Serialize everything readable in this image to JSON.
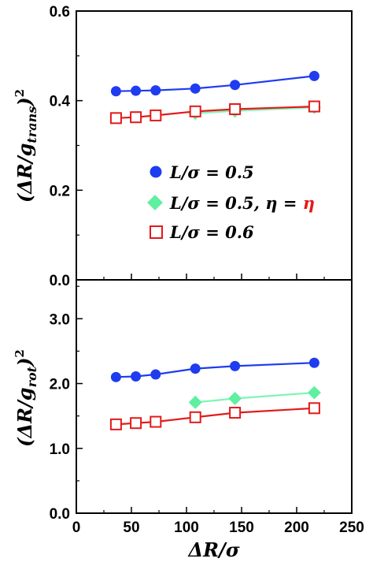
{
  "chart_data": [
    {
      "type": "line",
      "panel": "top",
      "ylabel": "(ΔR/g_trans)²",
      "xlim": [
        0,
        250
      ],
      "ylim": [
        0.0,
        0.6
      ],
      "yticks": [
        "0.0",
        "0.2",
        "0.4",
        "0.6"
      ],
      "legend": {
        "placement": "center-right"
      },
      "series": [
        {
          "name": "L/σ = 0.5",
          "marker": "circle",
          "color": "#1f3cf0",
          "x": [
            36,
            54,
            72,
            108,
            144,
            216
          ],
          "y": [
            0.421,
            0.422,
            0.423,
            0.427,
            0.435,
            0.455
          ]
        },
        {
          "name": "L/σ = 0.5, η = η",
          "marker": "diamond",
          "color": "#5ef0a0",
          "x": [
            108,
            144,
            216
          ],
          "y": [
            0.372,
            0.377,
            0.385
          ]
        },
        {
          "name": "L/σ = 0.6",
          "marker": "open-square",
          "color": "#e31a1a",
          "x": [
            36,
            54,
            72,
            108,
            144,
            216
          ],
          "y": [
            0.361,
            0.363,
            0.367,
            0.376,
            0.381,
            0.387
          ]
        }
      ]
    },
    {
      "type": "line",
      "panel": "bottom",
      "ylabel": "(ΔR/g_rot)²",
      "xlabel": "ΔR/σ",
      "xlim": [
        0,
        250
      ],
      "ylim": [
        0.0,
        3.6
      ],
      "xticks": [
        "0",
        "50",
        "100",
        "150",
        "200",
        "250"
      ],
      "yticks": [
        "0.0",
        "1.0",
        "2.0",
        "3.0"
      ],
      "series": [
        {
          "name": "L/σ = 0.5",
          "marker": "circle",
          "color": "#1f3cf0",
          "x": [
            36,
            54,
            72,
            108,
            144,
            216
          ],
          "y": [
            2.1,
            2.11,
            2.14,
            2.23,
            2.27,
            2.32
          ]
        },
        {
          "name": "L/σ = 0.5, η = η",
          "marker": "diamond",
          "color": "#5ef0a0",
          "x": [
            108,
            144,
            216
          ],
          "y": [
            1.71,
            1.77,
            1.86
          ]
        },
        {
          "name": "L/σ = 0.6",
          "marker": "open-square",
          "color": "#e31a1a",
          "x": [
            36,
            54,
            72,
            108,
            144,
            216
          ],
          "y": [
            1.37,
            1.39,
            1.41,
            1.48,
            1.55,
            1.62
          ]
        }
      ]
    }
  ],
  "legend_text": {
    "item1": "L/σ = 0.5",
    "item2_prefix": "L/σ = 0.5, η = ",
    "item2_eta": "η",
    "item3": "L/σ = 0.6"
  },
  "axis_titles": {
    "top_y_main": "(ΔR/g",
    "top_y_sub": "trans",
    "top_y_close": ")",
    "top_y_sup": "2",
    "bottom_y_main": "(ΔR/g",
    "bottom_y_sub": "rot",
    "bottom_y_close": ")",
    "bottom_y_sup": "2",
    "x_title": "ΔR/σ"
  },
  "colors": {
    "blue": "#1f3cf0",
    "green_line": "#7ef5b8",
    "green_marker": "#5ef0a0",
    "red": "#e31a1a",
    "eta_red": "#e31a1a"
  }
}
